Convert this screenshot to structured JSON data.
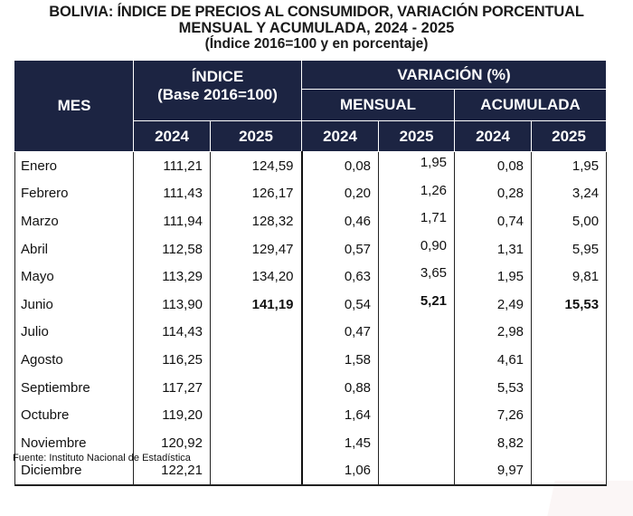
{
  "title": {
    "line1": "BOLIVIA: ÍNDICE DE PRECIOS AL CONSUMIDOR, VARIACIÓN PORCENTUAL",
    "line2": "MENSUAL Y ACUMULADA, 2024 - 2025",
    "line3": "(Índice 2016=100 y en porcentaje)"
  },
  "header": {
    "mes": "MES",
    "indice_line1": "ÍNDICE",
    "indice_line2": "(Base 2016=100)",
    "variacion": "VARIACIÓN (%)",
    "mensual": "MENSUAL",
    "acumulada": "ACUMULADA",
    "years": [
      "2024",
      "2025",
      "2024",
      "2025",
      "2024",
      "2025"
    ]
  },
  "rows": [
    {
      "mes": "Enero",
      "idx2024": "111,21",
      "idx2025": "124,59",
      "men2024": "0,08",
      "men2025": "1,95",
      "acu2024": "0,08",
      "acu2025": "1,95"
    },
    {
      "mes": "Febrero",
      "idx2024": "111,43",
      "idx2025": "126,17",
      "men2024": "0,20",
      "men2025": "1,26",
      "acu2024": "0,28",
      "acu2025": "3,24"
    },
    {
      "mes": "Marzo",
      "idx2024": "111,94",
      "idx2025": "128,32",
      "men2024": "0,46",
      "men2025": "1,71",
      "acu2024": "0,74",
      "acu2025": "5,00"
    },
    {
      "mes": "Abril",
      "idx2024": "112,58",
      "idx2025": "129,47",
      "men2024": "0,57",
      "men2025": "0,90",
      "acu2024": "1,31",
      "acu2025": "5,95"
    },
    {
      "mes": "Mayo",
      "idx2024": "113,29",
      "idx2025": "134,20",
      "men2024": "0,63",
      "men2025": "3,65",
      "acu2024": "1,95",
      "acu2025": "9,81"
    },
    {
      "mes": "Junio",
      "idx2024": "113,90",
      "idx2025": "141,19",
      "men2024": "0,54",
      "men2025": "5,21",
      "acu2024": "2,49",
      "acu2025": "15,53",
      "highlight_2025": true
    },
    {
      "mes": "Julio",
      "idx2024": "114,43",
      "idx2025": "",
      "men2024": "0,47",
      "men2025": "",
      "acu2024": "2,98",
      "acu2025": ""
    },
    {
      "mes": "Agosto",
      "idx2024": "116,25",
      "idx2025": "",
      "men2024": "1,58",
      "men2025": "",
      "acu2024": "4,61",
      "acu2025": ""
    },
    {
      "mes": "Septiembre",
      "idx2024": "117,27",
      "idx2025": "",
      "men2024": "0,88",
      "men2025": "",
      "acu2024": "5,53",
      "acu2025": ""
    },
    {
      "mes": "Octubre",
      "idx2024": "119,20",
      "idx2025": "",
      "men2024": "1,64",
      "men2025": "",
      "acu2024": "7,26",
      "acu2025": ""
    },
    {
      "mes": "Noviembre",
      "idx2024": "120,92",
      "idx2025": "",
      "men2024": "1,45",
      "men2025": "",
      "acu2024": "8,82",
      "acu2025": ""
    },
    {
      "mes": "Diciembre",
      "idx2024": "122,21",
      "idx2025": "",
      "men2024": "1,06",
      "men2025": "",
      "acu2024": "9,97",
      "acu2025": ""
    }
  ],
  "source": "Fuente: Instituto Nacional de Estadística",
  "colors": {
    "header_bg": "#1c2442"
  }
}
